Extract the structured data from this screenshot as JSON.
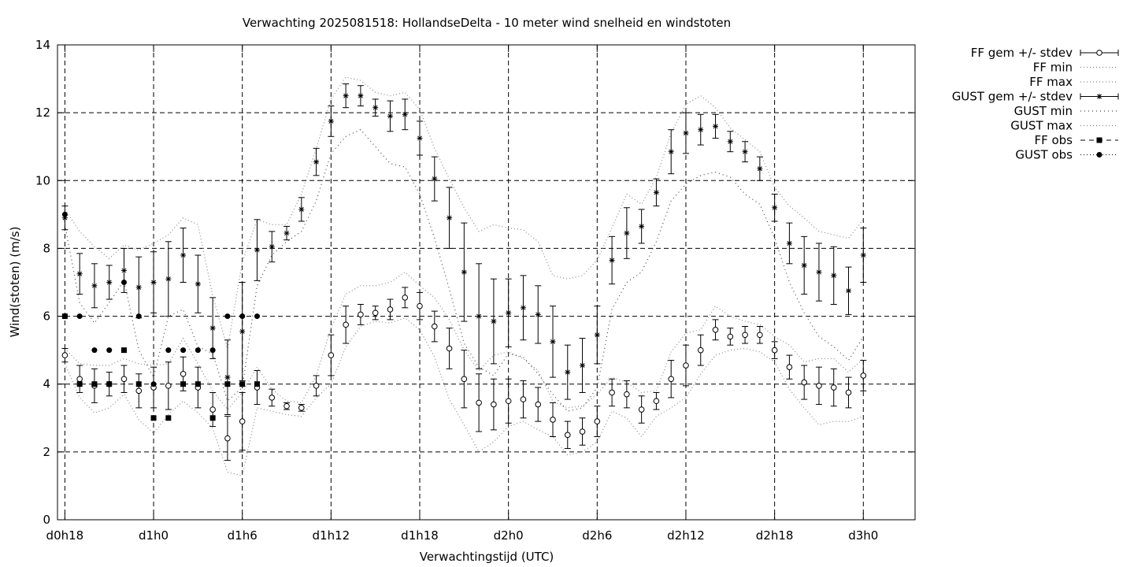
{
  "chart_data": {
    "type": "line",
    "title": "Verwachting 2025081518: HollandseDelta - 10 meter wind snelheid en windstoten",
    "xlabel": "Verwachtingstijd (UTC)",
    "ylabel": "Wind(stoten) (m/s)",
    "xlim": [
      -0.5,
      57.5
    ],
    "ylim": [
      0,
      14
    ],
    "yticks": [
      0,
      2,
      4,
      6,
      8,
      10,
      12,
      14
    ],
    "xticks": [
      {
        "x": 0,
        "label": "d0h18"
      },
      {
        "x": 6,
        "label": "d1h0"
      },
      {
        "x": 12,
        "label": "d1h6"
      },
      {
        "x": 18,
        "label": "d1h12"
      },
      {
        "x": 24,
        "label": "d1h18"
      },
      {
        "x": 30,
        "label": "d2h0"
      },
      {
        "x": 36,
        "label": "d2h6"
      },
      {
        "x": 42,
        "label": "d2h12"
      },
      {
        "x": 48,
        "label": "d2h18"
      },
      {
        "x": 54,
        "label": "d3h0"
      }
    ],
    "grid": true,
    "legend_position": "outside-top-right",
    "legend": [
      "FF gem +/- stdev",
      "FF min",
      "FF max",
      "GUST gem +/- stdev",
      "GUST min",
      "GUST max",
      "FF obs",
      "GUST obs"
    ],
    "x": [
      0,
      1,
      2,
      3,
      4,
      5,
      6,
      7,
      8,
      9,
      10,
      11,
      12,
      13,
      14,
      15,
      16,
      17,
      18,
      19,
      20,
      21,
      22,
      23,
      24,
      25,
      26,
      27,
      28,
      29,
      30,
      31,
      32,
      33,
      34,
      35,
      36,
      37,
      38,
      39,
      40,
      41,
      42,
      43,
      44,
      45,
      46,
      47,
      48,
      49,
      50,
      51,
      52,
      53,
      54
    ],
    "ff_mean": [
      4.85,
      4.15,
      3.95,
      4.0,
      4.15,
      3.8,
      3.9,
      3.95,
      4.3,
      3.9,
      3.25,
      2.4,
      2.9,
      3.9,
      3.6,
      3.35,
      3.3,
      3.95,
      4.85,
      5.75,
      6.05,
      6.1,
      6.2,
      6.55,
      6.3,
      5.7,
      5.05,
      4.15,
      3.45,
      3.4,
      3.5,
      3.55,
      3.4,
      2.95,
      2.5,
      2.6,
      2.9,
      3.75,
      3.7,
      3.25,
      3.5,
      4.15,
      4.55,
      5.0,
      5.6,
      5.4,
      5.45,
      5.45,
      5.0,
      4.5,
      4.05,
      3.95,
      3.9,
      3.75,
      4.25
    ],
    "ff_stdev": [
      0.2,
      0.4,
      0.5,
      0.35,
      0.4,
      0.5,
      0.6,
      0.7,
      0.5,
      0.6,
      0.5,
      0.65,
      0.85,
      0.5,
      0.25,
      0.1,
      0.1,
      0.3,
      0.6,
      0.55,
      0.3,
      0.2,
      0.3,
      0.3,
      0.4,
      0.45,
      0.6,
      0.85,
      0.85,
      0.75,
      0.65,
      0.55,
      0.5,
      0.5,
      0.4,
      0.4,
      0.45,
      0.4,
      0.4,
      0.4,
      0.25,
      0.55,
      0.6,
      0.45,
      0.3,
      0.25,
      0.25,
      0.25,
      0.25,
      0.35,
      0.5,
      0.55,
      0.55,
      0.45,
      0.45
    ],
    "ff_min": [
      4.6,
      3.6,
      3.15,
      3.3,
      3.7,
      2.95,
      2.55,
      3.1,
      3.5,
      3.15,
      2.7,
      1.4,
      1.3,
      3.3,
      3.2,
      3.1,
      3.05,
      3.6,
      4.0,
      5.1,
      5.7,
      5.85,
      5.8,
      5.95,
      5.6,
      4.8,
      3.55,
      2.8,
      2.0,
      2.3,
      2.75,
      2.9,
      2.65,
      2.45,
      1.9,
      2.0,
      2.3,
      3.2,
      3.0,
      2.45,
      3.05,
      3.3,
      3.6,
      4.3,
      4.85,
      5.0,
      5.05,
      4.95,
      4.65,
      3.85,
      3.3,
      2.8,
      2.9,
      2.9,
      3.05
    ],
    "ff_max": [
      5.05,
      4.6,
      4.55,
      4.55,
      4.75,
      4.6,
      4.55,
      4.6,
      5.35,
      4.6,
      3.8,
      3.25,
      3.75,
      4.5,
      3.85,
      3.5,
      3.45,
      4.25,
      5.65,
      6.65,
      6.9,
      6.9,
      7.0,
      7.3,
      6.9,
      6.55,
      5.9,
      5.0,
      4.4,
      4.85,
      4.95,
      4.75,
      4.4,
      3.5,
      3.3,
      3.35,
      3.7,
      4.2,
      4.05,
      3.75,
      3.8,
      4.95,
      5.5,
      5.6,
      6.3,
      6.0,
      5.85,
      5.75,
      5.4,
      5.15,
      4.65,
      4.75,
      4.75,
      4.35,
      4.75
    ],
    "gust_mean": [
      8.9,
      7.25,
      6.9,
      7.0,
      7.35,
      6.85,
      7.0,
      7.1,
      7.8,
      6.95,
      5.65,
      4.2,
      5.55,
      7.95,
      8.05,
      8.45,
      9.15,
      10.55,
      11.75,
      12.5,
      12.5,
      12.15,
      11.9,
      11.95,
      11.25,
      10.05,
      8.9,
      7.3,
      6.0,
      5.85,
      6.1,
      6.25,
      6.05,
      5.25,
      4.35,
      4.55,
      5.45,
      7.65,
      8.45,
      8.65,
      9.65,
      10.85,
      11.4,
      11.5,
      11.6,
      11.15,
      10.85,
      10.35,
      9.2,
      8.15,
      7.5,
      7.3,
      7.2,
      6.75,
      7.8
    ],
    "gust_stdev": [
      0.35,
      0.6,
      0.65,
      0.5,
      0.65,
      0.9,
      0.9,
      1.1,
      0.8,
      0.85,
      0.9,
      1.1,
      1.45,
      0.9,
      0.45,
      0.2,
      0.35,
      0.4,
      0.45,
      0.35,
      0.3,
      0.25,
      0.45,
      0.45,
      0.5,
      0.65,
      0.9,
      1.45,
      1.55,
      1.25,
      1.0,
      0.95,
      0.85,
      1.05,
      0.8,
      0.8,
      0.85,
      0.7,
      0.75,
      0.5,
      0.4,
      0.65,
      0.6,
      0.45,
      0.35,
      0.3,
      0.3,
      0.35,
      0.4,
      0.6,
      0.85,
      0.85,
      0.85,
      0.7,
      0.8
    ],
    "gust_min": [
      8.7,
      6.4,
      5.8,
      6.4,
      7.05,
      5.0,
      4.2,
      6.0,
      6.2,
      5.1,
      4.9,
      3.5,
      3.9,
      6.9,
      7.8,
      8.2,
      8.5,
      9.4,
      10.8,
      11.3,
      11.5,
      11.0,
      10.5,
      10.4,
      9.6,
      8.3,
      6.8,
      5.2,
      4.5,
      4.25,
      4.9,
      4.8,
      4.3,
      3.7,
      3.2,
      3.3,
      3.9,
      6.2,
      7.0,
      7.3,
      8.2,
      9.4,
      9.9,
      10.15,
      10.25,
      10.1,
      9.6,
      9.3,
      8.3,
      7.0,
      6.1,
      5.4,
      5.1,
      4.7,
      5.4
    ],
    "gust_max": [
      9.15,
      8.5,
      8.05,
      7.7,
      8.1,
      7.95,
      8.15,
      8.4,
      8.9,
      8.7,
      6.6,
      5.05,
      7.6,
      8.85,
      8.7,
      8.7,
      9.6,
      10.95,
      12.4,
      13.05,
      12.95,
      12.6,
      12.5,
      12.6,
      12.1,
      10.95,
      10.05,
      9.2,
      8.5,
      8.7,
      8.6,
      8.55,
      8.2,
      7.2,
      7.1,
      7.2,
      7.65,
      8.6,
      9.6,
      9.3,
      10.1,
      11.4,
      12.25,
      12.5,
      12.15,
      11.55,
      11.2,
      10.85,
      9.8,
      9.25,
      8.9,
      8.5,
      8.4,
      8.3,
      8.85
    ],
    "ff_obs": [
      {
        "x": 0,
        "y": 6
      },
      {
        "x": 1,
        "y": 4
      },
      {
        "x": 2,
        "y": 4
      },
      {
        "x": 3,
        "y": 4
      },
      {
        "x": 4,
        "y": 5
      },
      {
        "x": 5,
        "y": 4
      },
      {
        "x": 6,
        "y": 3
      },
      {
        "x": 7,
        "y": 3
      },
      {
        "x": 8,
        "y": 4
      },
      {
        "x": 9,
        "y": 4
      },
      {
        "x": 10,
        "y": 3
      },
      {
        "x": 11,
        "y": 4
      },
      {
        "x": 12,
        "y": 4
      },
      {
        "x": 13,
        "y": 4
      }
    ],
    "gust_obs": [
      {
        "x": 0,
        "y": 9
      },
      {
        "x": 1,
        "y": 6
      },
      {
        "x": 2,
        "y": 5
      },
      {
        "x": 3,
        "y": 5
      },
      {
        "x": 4,
        "y": 7
      },
      {
        "x": 5,
        "y": 6
      },
      {
        "x": 6,
        "y": 4
      },
      {
        "x": 7,
        "y": 5
      },
      {
        "x": 8,
        "y": 5
      },
      {
        "x": 9,
        "y": 5
      },
      {
        "x": 10,
        "y": 5
      },
      {
        "x": 11,
        "y": 6
      },
      {
        "x": 12,
        "y": 6
      },
      {
        "x": 13,
        "y": 6
      }
    ]
  }
}
